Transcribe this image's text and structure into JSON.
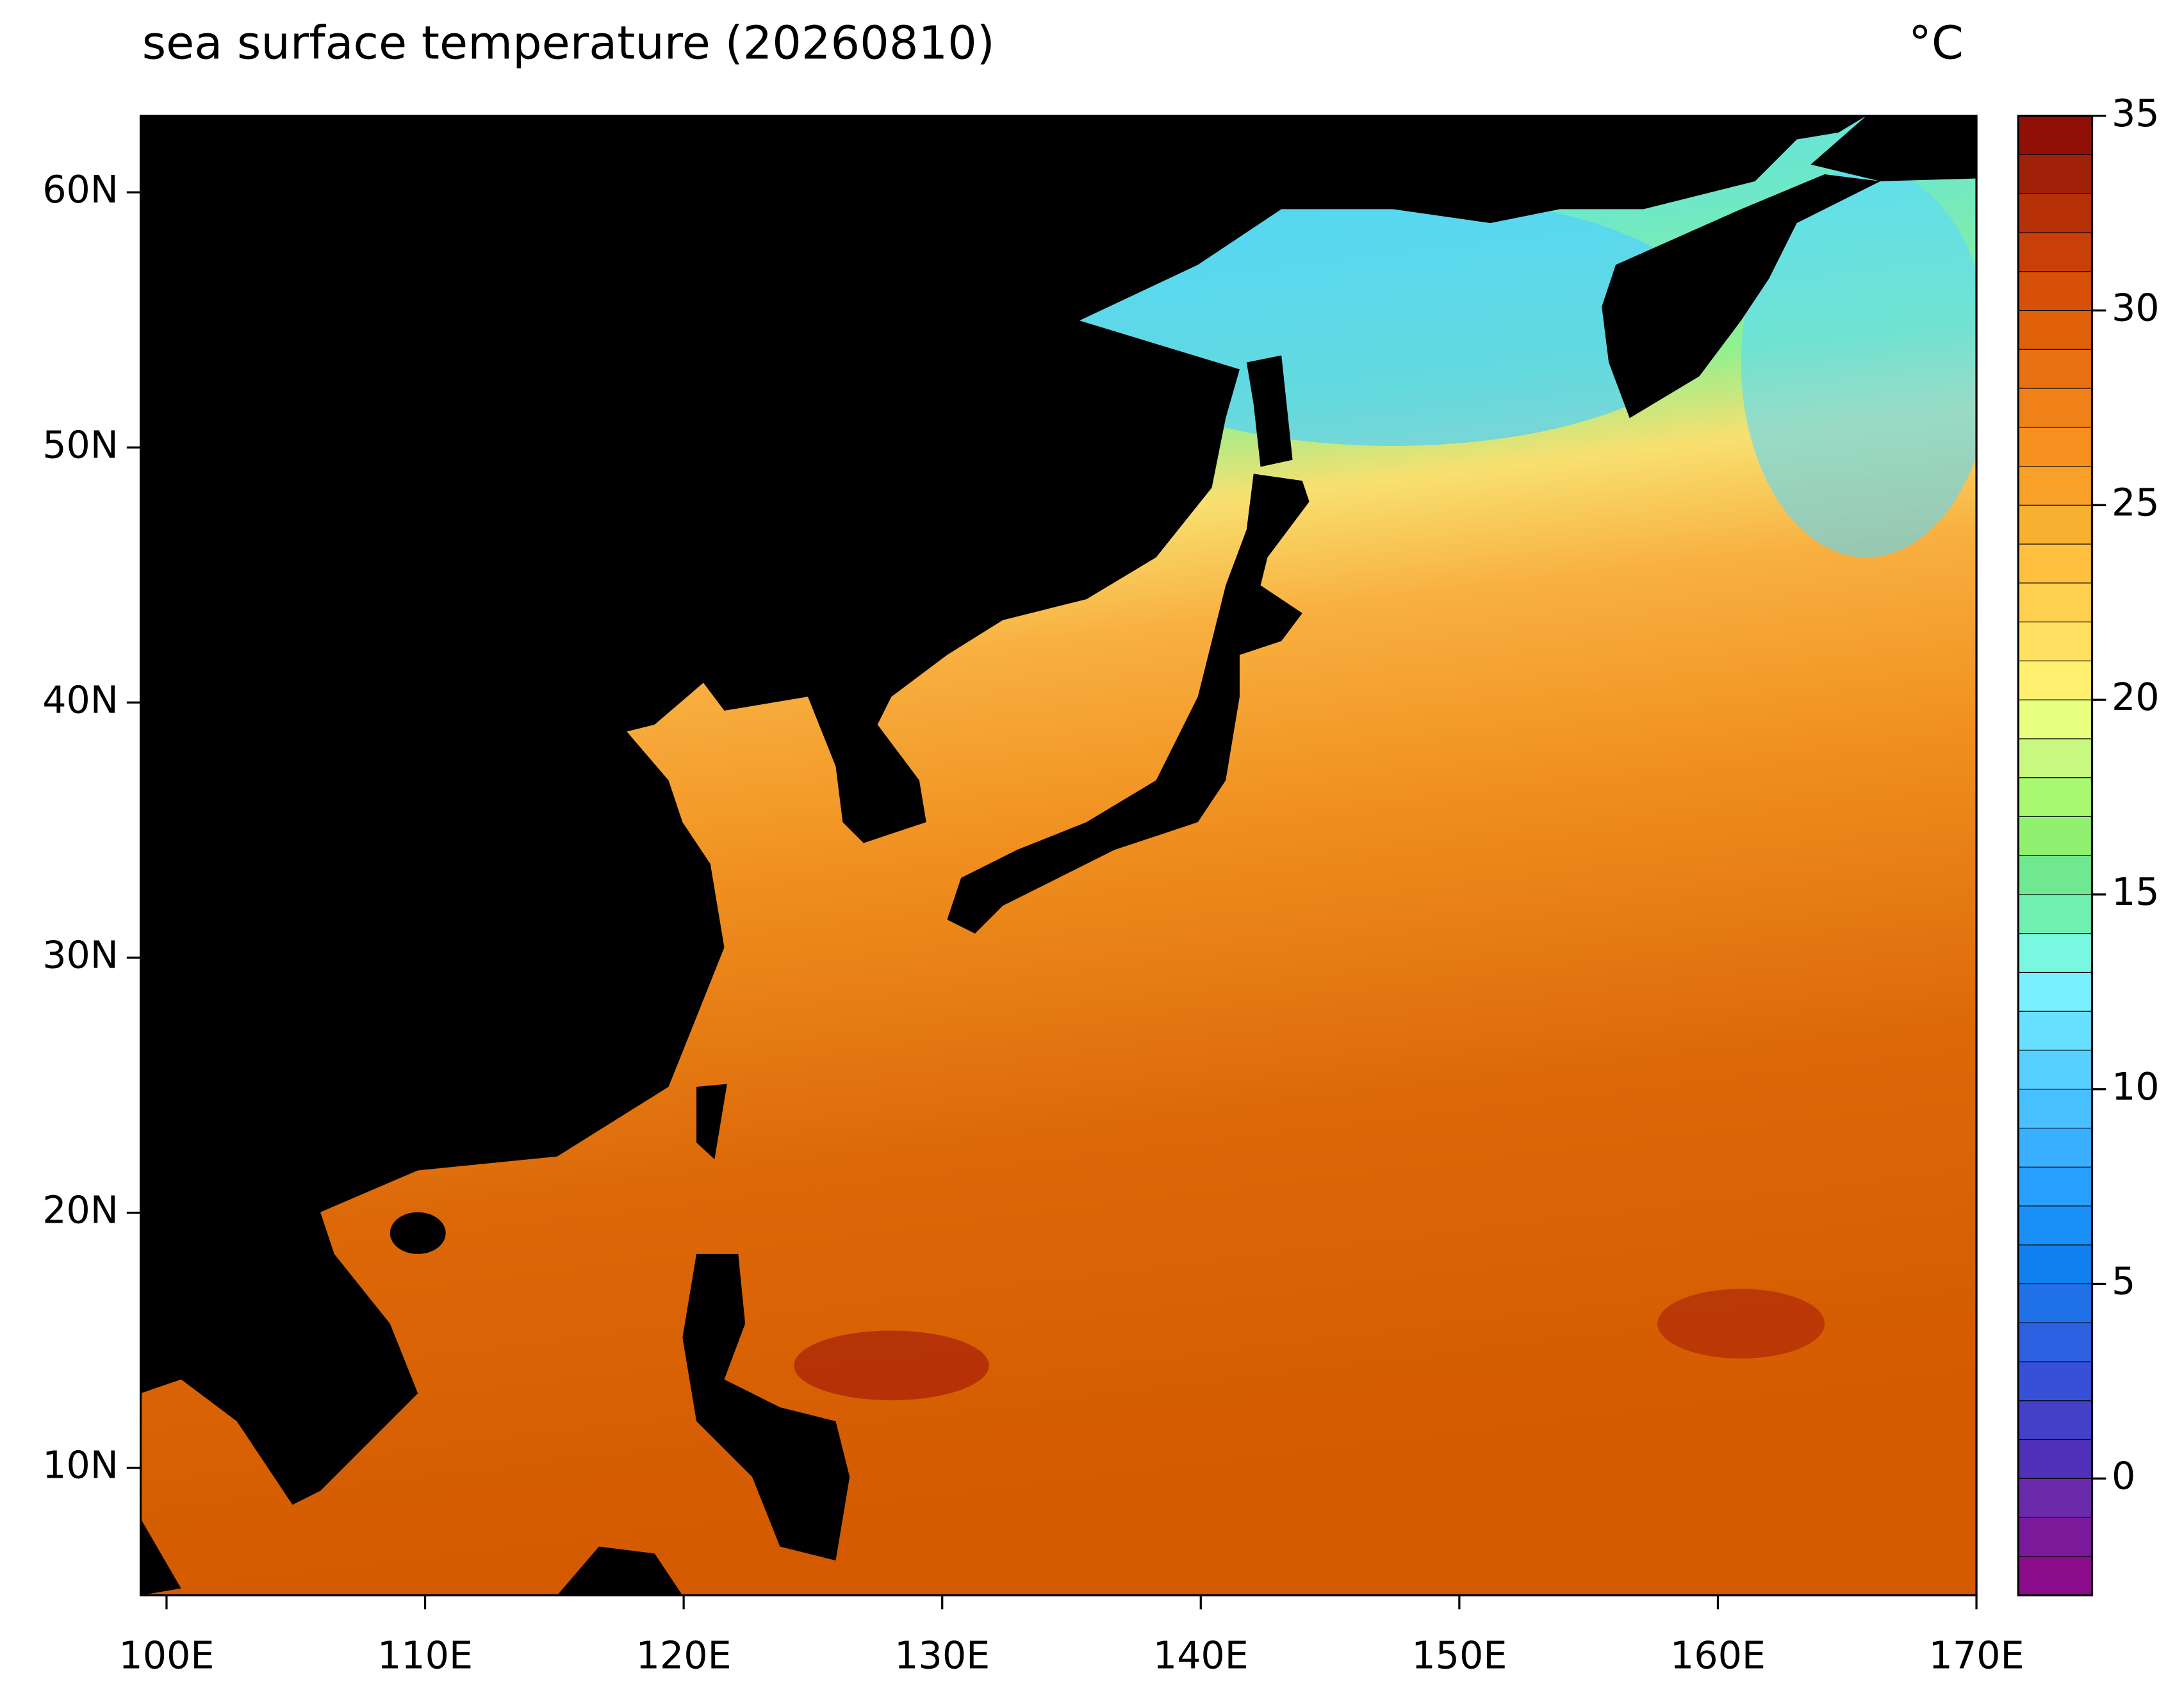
{
  "chart_data": {
    "type": "map",
    "title": "sea surface temperature (20260810)",
    "units": "°C",
    "xlim": [
      99,
      170
    ],
    "xticks": [
      {
        "value": 100,
        "label": "100E"
      },
      {
        "value": 110,
        "label": "110E"
      },
      {
        "value": 120,
        "label": "120E"
      },
      {
        "value": 130,
        "label": "130E"
      },
      {
        "value": 140,
        "label": "140E"
      },
      {
        "value": 150,
        "label": "150E"
      },
      {
        "value": 160,
        "label": "160E"
      },
      {
        "value": 170,
        "label": "170E"
      }
    ],
    "ylim": [
      5,
      63
    ],
    "yticks": [
      {
        "value": 10,
        "label": "10N"
      },
      {
        "value": 20,
        "label": "20N"
      },
      {
        "value": 30,
        "label": "30N"
      },
      {
        "value": 40,
        "label": "40N"
      },
      {
        "value": 50,
        "label": "50N"
      },
      {
        "value": 60,
        "label": "60N"
      }
    ],
    "colorbar": {
      "lim": [
        -3,
        35
      ],
      "ticks": [
        0,
        5,
        10,
        15,
        20,
        25,
        30,
        35
      ],
      "colors": [
        "#8a0c8a",
        "#7a1a9a",
        "#6a2aaa",
        "#5030b8",
        "#4440c8",
        "#3850d8",
        "#2c60e0",
        "#2070e8",
        "#1080f0",
        "#1890f8",
        "#28a0ff",
        "#38b0ff",
        "#48c0ff",
        "#58d0ff",
        "#68e0ff",
        "#78f0ff",
        "#78f8e0",
        "#70f0b0",
        "#70e890",
        "#90f070",
        "#a8f870",
        "#c8f880",
        "#e8ff80",
        "#fff070",
        "#ffe060",
        "#ffd050",
        "#ffc040",
        "#f8b030",
        "#f8a028",
        "#f89020",
        "#f08018",
        "#e87010",
        "#e06008",
        "#d85008",
        "#c84008",
        "#b83008",
        "#a02008",
        "#901008"
      ]
    },
    "land_color": "#000000"
  }
}
